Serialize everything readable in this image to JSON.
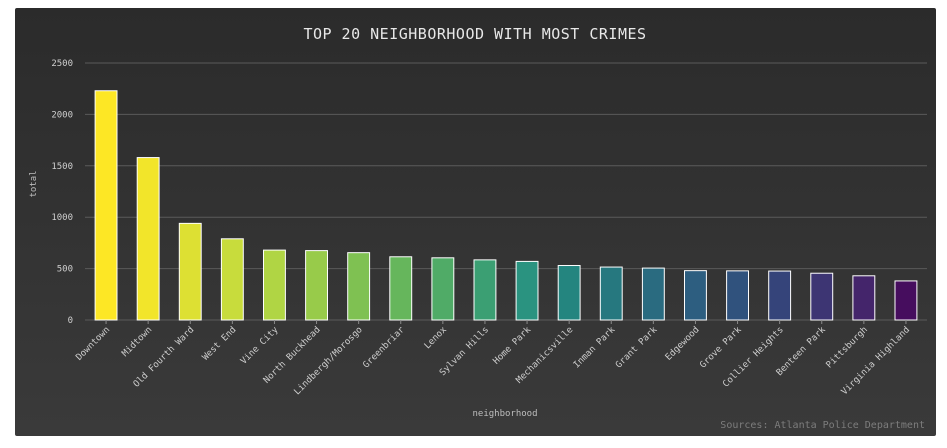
{
  "chart_data": {
    "type": "bar",
    "title": "TOP 20 NEIGHBORHOOD WITH MOST CRIMES",
    "xlabel": "neighborhood",
    "ylabel": "total",
    "source": "Sources: Atlanta Police Department",
    "ylim": [
      0,
      2500
    ],
    "yticks": [
      0,
      500,
      1000,
      1500,
      2000,
      2500
    ],
    "ytick_labels": [
      "0",
      "500",
      "1000",
      "1500",
      "2000",
      "2500"
    ],
    "grid": true,
    "categories": [
      "Downtown",
      "Midtown",
      "Old Fourth Ward",
      "West End",
      "Vine City",
      "North Buckhead",
      "Lindbergh/Morosgo",
      "Greenbriar",
      "Lenox",
      "Sylvan Hills",
      "Home Park",
      "Mechanicsville",
      "Inman Park",
      "Grant Park",
      "Edgewood",
      "Grove Park",
      "Collier Heights",
      "Benteen Park",
      "Pittsburgh",
      "Virginia Highland"
    ],
    "values": [
      2230,
      1580,
      940,
      790,
      680,
      675,
      655,
      615,
      605,
      585,
      570,
      530,
      515,
      505,
      480,
      478,
      476,
      455,
      430,
      380
    ],
    "colors": [
      "#fde725",
      "#f2e52a",
      "#dde033",
      "#c8dc3c",
      "#b0d544",
      "#98cb4a",
      "#7fc152",
      "#66b65c",
      "#50ab67",
      "#3b9f73",
      "#2a9380",
      "#24857f",
      "#26787f",
      "#2a6b80",
      "#2d5e80",
      "#30527d",
      "#35447a",
      "#3d3573",
      "#44256b",
      "#460d5e"
    ]
  }
}
